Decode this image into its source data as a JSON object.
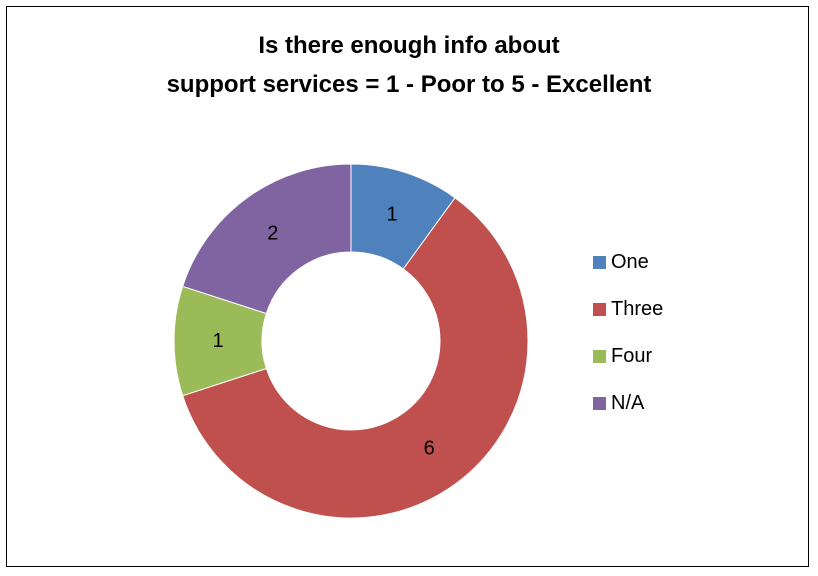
{
  "chart_data": {
    "type": "pie",
    "variant": "doughnut",
    "title_lines": [
      "Is there enough info about",
      "support services = 1 - Poor to 5 - Excellent"
    ],
    "categories": [
      "One",
      "Three",
      "Four",
      "N/A"
    ],
    "values": [
      1,
      6,
      1,
      2
    ],
    "data_labels": [
      "1",
      "6",
      "1",
      "2"
    ],
    "colors": [
      "#4F81BD",
      "#C0504D",
      "#9BBB59",
      "#8064A2"
    ],
    "legend_position": "right"
  }
}
